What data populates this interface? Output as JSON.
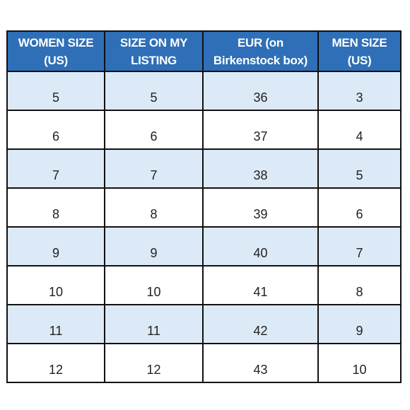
{
  "table": {
    "headers": [
      "WOMEN SIZE\n(US)",
      "SIZE ON MY\nLISTING",
      "EUR (on\nBirkenstock box)",
      "MEN SIZE\n(US)"
    ],
    "rows": [
      [
        "5",
        "5",
        "36",
        "3"
      ],
      [
        "6",
        "6",
        "37",
        "4"
      ],
      [
        "7",
        "7",
        "38",
        "5"
      ],
      [
        "8",
        "8",
        "39",
        "6"
      ],
      [
        "9",
        "9",
        "40",
        "7"
      ],
      [
        "10",
        "10",
        "41",
        "8"
      ],
      [
        "11",
        "11",
        "42",
        "9"
      ],
      [
        "12",
        "12",
        "43",
        "10"
      ]
    ],
    "colors": {
      "header_bg": "#2e6fb7",
      "header_text": "#ffffff",
      "band_row": "#dce9f6",
      "plain_row": "#ffffff",
      "border": "#111111"
    }
  }
}
